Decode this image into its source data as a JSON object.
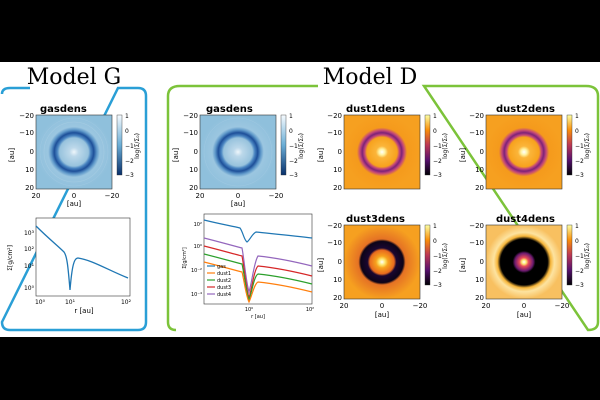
{
  "titles": {
    "model_g": "Model G",
    "model_d": "Model D"
  },
  "panels": {
    "g_gas": {
      "title": "gasdens"
    },
    "d_gas": {
      "title": "gasdens"
    },
    "d_dust1": {
      "title": "dust1dens"
    },
    "d_dust2": {
      "title": "dust2dens"
    },
    "d_dust3": {
      "title": "dust3dens"
    },
    "d_dust4": {
      "title": "dust4dens"
    }
  },
  "map_axes": {
    "y_ticks": [
      "−20",
      "−10",
      "0",
      "10",
      "20"
    ],
    "x_ticks": [
      "20",
      "0",
      "−20"
    ],
    "y_label": "[au]",
    "x_label": "[au]",
    "cbar_ticks": [
      "1",
      "0",
      "−1",
      "−2",
      "−3"
    ],
    "cbar_label": "log(Σ/Σ₀)"
  },
  "profile_g": {
    "y_ticks": [
      "10³",
      "10²",
      "10¹",
      "10⁰"
    ],
    "x_ticks": [
      "10⁰",
      "10¹",
      "10²"
    ],
    "y_label": "Σ[g/cm²]",
    "x_label": "r [au]"
  },
  "profile_d": {
    "y_ticks": [
      "10²",
      "10⁰",
      "10⁻²",
      "10⁻⁴"
    ],
    "x_ticks": [
      "10⁰",
      "10²"
    ],
    "y_label": "Σ[g/cm²]",
    "x_label": "r [au]",
    "legend": [
      "gas",
      "dust1",
      "dust2",
      "dust3",
      "dust4"
    ]
  },
  "colors": {
    "model_g_bracket": "#2a9fd6",
    "model_d_bracket": "#7cc33a",
    "gas": "#1f77b4",
    "dust1": "#ff7f0e",
    "dust2": "#2ca02c",
    "dust3": "#d62728",
    "dust4": "#9467bd"
  }
}
